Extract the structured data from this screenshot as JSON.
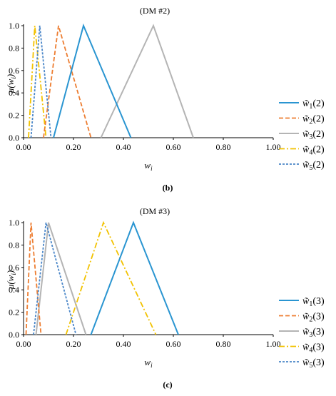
{
  "colors": {
    "w1": "#2a95d1",
    "w2": "#ed7d31",
    "w3": "#b4b4b4",
    "w4": "#f2c200",
    "w5": "#4a86c8"
  },
  "chart_data": [
    {
      "type": "line",
      "panel_label": "(b)",
      "title": "(DM #2)",
      "xlabel": "w",
      "xlabel_sub": "i",
      "ylabel": "μ(w",
      "ylabel_sub": "i",
      "ylabel_close": ")",
      "xlim": [
        0,
        1
      ],
      "ylim": [
        0,
        1
      ],
      "x_ticks": [
        "0.00",
        "0.20",
        "0.40",
        "0.60",
        "0.80",
        "1.00"
      ],
      "y_ticks": [
        "0.0",
        "0.2",
        "0.4",
        "0.6",
        "0.8",
        "1.0"
      ],
      "legend_position": "right",
      "series": [
        {
          "name": "w̃1(2)",
          "base": "w̃",
          "sub": "1",
          "tail": "(2)",
          "style": "solid",
          "color_key": "w1",
          "points": [
            [
              0.12,
              0
            ],
            [
              0.24,
              1
            ],
            [
              0.43,
              0
            ]
          ]
        },
        {
          "name": "w̃2(2)",
          "base": "w̃",
          "sub": "2",
          "tail": "(2)",
          "style": "dash",
          "color_key": "w2",
          "points": [
            [
              0.08,
              0
            ],
            [
              0.14,
              1
            ],
            [
              0.27,
              0
            ]
          ]
        },
        {
          "name": "w̃3(2)",
          "base": "w̃",
          "sub": "3",
          "tail": "(2)",
          "style": "solid",
          "color_key": "w3",
          "points": [
            [
              0.31,
              0
            ],
            [
              0.52,
              1
            ],
            [
              0.68,
              0
            ]
          ]
        },
        {
          "name": "w̃4(2)",
          "base": "w̃",
          "sub": "4",
          "tail": "(2)",
          "style": "dashdot",
          "color_key": "w4",
          "points": [
            [
              0.02,
              0
            ],
            [
              0.045,
              1
            ],
            [
              0.09,
              0
            ]
          ]
        },
        {
          "name": "w̃5(2)",
          "base": "w̃",
          "sub": "5",
          "tail": "(2)",
          "style": "dot",
          "color_key": "w5",
          "points": [
            [
              0.03,
              0
            ],
            [
              0.065,
              1
            ],
            [
              0.11,
              0
            ]
          ]
        }
      ]
    },
    {
      "type": "line",
      "panel_label": "(c)",
      "title": "(DM #3)",
      "xlabel": "w",
      "xlabel_sub": "i",
      "ylabel": "μ(w",
      "ylabel_sub": "i",
      "ylabel_close": ")",
      "xlim": [
        0,
        1
      ],
      "ylim": [
        0,
        1
      ],
      "x_ticks": [
        "0.00",
        "0.20",
        "0.40",
        "0.60",
        "0.80",
        "1.00"
      ],
      "y_ticks": [
        "0.0",
        "0.2",
        "0.4",
        "0.6",
        "0.8",
        "1.0"
      ],
      "legend_position": "right",
      "series": [
        {
          "name": "w̃1(3)",
          "base": "w̃",
          "sub": "1",
          "tail": "(3)",
          "style": "solid",
          "color_key": "w1",
          "points": [
            [
              0.27,
              0
            ],
            [
              0.44,
              1
            ],
            [
              0.62,
              0
            ]
          ]
        },
        {
          "name": "w̃2(3)",
          "base": "w̃",
          "sub": "2",
          "tail": "(3)",
          "style": "dash",
          "color_key": "w2",
          "points": [
            [
              0.01,
              0
            ],
            [
              0.03,
              1
            ],
            [
              0.07,
              0
            ]
          ]
        },
        {
          "name": "w̃3(3)",
          "base": "w̃",
          "sub": "3",
          "tail": "(3)",
          "style": "solid",
          "color_key": "w3",
          "points": [
            [
              0.05,
              0
            ],
            [
              0.1,
              1
            ],
            [
              0.25,
              0
            ]
          ]
        },
        {
          "name": "w̃4(3)",
          "base": "w̃",
          "sub": "4",
          "tail": "(3)",
          "style": "dashdot",
          "color_key": "w4",
          "points": [
            [
              0.17,
              0
            ],
            [
              0.32,
              1
            ],
            [
              0.53,
              0
            ]
          ]
        },
        {
          "name": "w̃5(3)",
          "base": "w̃",
          "sub": "5",
          "tail": "(3)",
          "style": "dot",
          "color_key": "w5",
          "points": [
            [
              0.04,
              0
            ],
            [
              0.09,
              1
            ],
            [
              0.21,
              0
            ]
          ]
        }
      ]
    }
  ]
}
